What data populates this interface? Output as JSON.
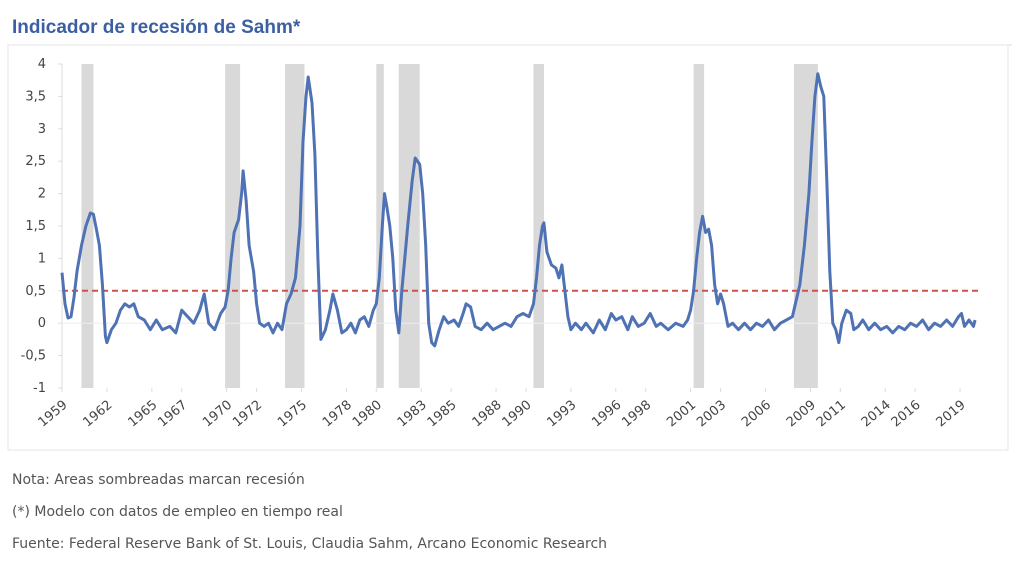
{
  "chart_data": {
    "type": "line",
    "title": "Indicador de recesión de Sahm*",
    "notes": [
      "Nota: Areas sombreadas marcan recesión",
      "(*) Modelo con datos de empleo en tiempo real",
      "Fuente: Federal Reserve Bank of St. Louis, Claudia Sahm, Arcano Economic Research"
    ],
    "xlim": [
      1959,
      2020.2
    ],
    "xticks": [
      1959,
      1962,
      1965,
      1967,
      1970,
      1972,
      1975,
      1978,
      1980,
      1983,
      1985,
      1988,
      1990,
      1993,
      1996,
      1998,
      2001,
      2003,
      2006,
      2009,
      2011,
      2014,
      2016,
      2019
    ],
    "ylim": [
      -1,
      4
    ],
    "yticks": [
      -1,
      {
        "value": -0.5,
        "label": "-0,5"
      },
      0,
      {
        "value": 0.5,
        "label": "0,5"
      },
      1,
      {
        "value": 1.5,
        "label": "1,5"
      },
      2,
      {
        "value": 2.5,
        "label": "2,5"
      },
      3,
      {
        "value": 3.5,
        "label": "3,5"
      },
      4
    ],
    "threshold": 0.5,
    "threshold_color": "#d0504a",
    "recessions": [
      [
        1960.3,
        1961.1
      ],
      [
        1969.9,
        1970.9
      ],
      [
        1973.9,
        1975.2
      ],
      [
        1980.0,
        1980.5
      ],
      [
        1981.5,
        1982.9
      ],
      [
        1990.5,
        1991.2
      ],
      [
        2001.2,
        2001.9
      ],
      [
        2007.9,
        2009.5
      ]
    ],
    "recession_color": "#d9d9d9",
    "series": [
      {
        "color": "#4f72b4",
        "x": [
          1959.0,
          1959.2,
          1959.4,
          1959.6,
          1959.8,
          1960.0,
          1960.3,
          1960.6,
          1960.9,
          1961.1,
          1961.3,
          1961.5,
          1961.7,
          1961.9,
          1962.0,
          1962.3,
          1962.6,
          1962.9,
          1963.2,
          1963.5,
          1963.8,
          1964.1,
          1964.5,
          1964.9,
          1965.3,
          1965.7,
          1966.2,
          1966.6,
          1967.0,
          1967.4,
          1967.8,
          1968.2,
          1968.5,
          1968.8,
          1969.2,
          1969.6,
          1969.9,
          1970.1,
          1970.3,
          1970.5,
          1970.8,
          1971.0,
          1971.1,
          1971.3,
          1971.5,
          1971.8,
          1972.0,
          1972.2,
          1972.5,
          1972.8,
          1973.1,
          1973.4,
          1973.7,
          1974.0,
          1974.3,
          1974.6,
          1974.9,
          1975.1,
          1975.3,
          1975.45,
          1975.7,
          1975.9,
          1976.1,
          1976.3,
          1976.6,
          1976.9,
          1977.1,
          1977.4,
          1977.7,
          1978.0,
          1978.3,
          1978.6,
          1978.9,
          1979.2,
          1979.5,
          1979.8,
          1980.0,
          1980.2,
          1980.4,
          1980.55,
          1980.7,
          1980.9,
          1981.1,
          1981.3,
          1981.5,
          1981.7,
          1981.9,
          1982.1,
          1982.4,
          1982.6,
          1982.9,
          1983.1,
          1983.3,
          1983.5,
          1983.7,
          1983.9,
          1984.2,
          1984.5,
          1984.8,
          1985.2,
          1985.5,
          1985.8,
          1986.0,
          1986.3,
          1986.6,
          1987.0,
          1987.4,
          1987.8,
          1988.2,
          1988.6,
          1989.0,
          1989.4,
          1989.8,
          1990.2,
          1990.5,
          1990.7,
          1990.9,
          1991.1,
          1991.2,
          1991.4,
          1991.7,
          1992.0,
          1992.2,
          1992.4,
          1992.6,
          1992.8,
          1993.0,
          1993.3,
          1993.7,
          1994.0,
          1994.5,
          1994.9,
          1995.3,
          1995.7,
          1996.0,
          1996.4,
          1996.8,
          1997.1,
          1997.5,
          1997.9,
          1998.3,
          1998.7,
          1999.0,
          1999.5,
          2000.0,
          2000.5,
          2000.8,
          2001.0,
          2001.2,
          2001.4,
          2001.6,
          2001.8,
          2002.0,
          2002.2,
          2002.4,
          2002.6,
          2002.8,
          2003.0,
          2003.2,
          2003.5,
          2003.8,
          2004.2,
          2004.6,
          2005.0,
          2005.4,
          2005.8,
          2006.2,
          2006.6,
          2007.0,
          2007.4,
          2007.8,
          2008.0,
          2008.3,
          2008.6,
          2008.9,
          2009.1,
          2009.3,
          2009.5,
          2009.7,
          2009.9,
          2010.1,
          2010.3,
          2010.5,
          2010.7,
          2010.9,
          2011.1,
          2011.4,
          2011.7,
          2011.9,
          2012.2,
          2012.5,
          2012.9,
          2013.3,
          2013.7,
          2014.1,
          2014.5,
          2014.9,
          2015.3,
          2015.7,
          2016.1,
          2016.5,
          2016.9,
          2017.3,
          2017.7,
          2018.1,
          2018.5,
          2018.9,
          2019.1,
          2019.3,
          2019.6,
          2019.9,
          2020.0
        ],
        "values": [
          0.78,
          0.3,
          0.08,
          0.1,
          0.4,
          0.8,
          1.2,
          1.5,
          1.7,
          1.68,
          1.45,
          1.2,
          0.6,
          -0.2,
          -0.3,
          -0.1,
          0.0,
          0.2,
          0.3,
          0.25,
          0.3,
          0.1,
          0.05,
          -0.1,
          0.05,
          -0.1,
          -0.05,
          -0.15,
          0.2,
          0.1,
          0.0,
          0.2,
          0.45,
          0.0,
          -0.1,
          0.15,
          0.25,
          0.5,
          1.0,
          1.4,
          1.6,
          2.0,
          2.35,
          1.9,
          1.2,
          0.8,
          0.3,
          0.0,
          -0.05,
          0.0,
          -0.15,
          0.0,
          -0.1,
          0.3,
          0.45,
          0.7,
          1.5,
          2.8,
          3.5,
          3.8,
          3.4,
          2.6,
          1.0,
          -0.25,
          -0.1,
          0.2,
          0.45,
          0.2,
          -0.15,
          -0.1,
          0.0,
          -0.15,
          0.05,
          0.1,
          -0.05,
          0.2,
          0.3,
          0.7,
          1.5,
          2.0,
          1.8,
          1.5,
          1.0,
          0.2,
          -0.15,
          0.5,
          1.0,
          1.5,
          2.2,
          2.55,
          2.45,
          2.0,
          1.2,
          0.0,
          -0.3,
          -0.35,
          -0.1,
          0.1,
          0.0,
          0.05,
          -0.05,
          0.15,
          0.3,
          0.25,
          -0.05,
          -0.1,
          0.0,
          -0.1,
          -0.05,
          0.0,
          -0.05,
          0.1,
          0.15,
          0.1,
          0.3,
          0.7,
          1.2,
          1.5,
          1.55,
          1.1,
          0.9,
          0.85,
          0.7,
          0.9,
          0.5,
          0.1,
          -0.1,
          0.0,
          -0.1,
          0.0,
          -0.15,
          0.05,
          -0.1,
          0.15,
          0.05,
          0.1,
          -0.1,
          0.1,
          -0.05,
          0.0,
          0.15,
          -0.05,
          0.0,
          -0.1,
          0.0,
          -0.05,
          0.05,
          0.2,
          0.5,
          1.0,
          1.4,
          1.65,
          1.4,
          1.45,
          1.2,
          0.6,
          0.3,
          0.45,
          0.3,
          -0.05,
          0.0,
          -0.1,
          0.0,
          -0.1,
          0.0,
          -0.05,
          0.05,
          -0.1,
          0.0,
          0.05,
          0.1,
          0.3,
          0.6,
          1.2,
          2.0,
          2.8,
          3.5,
          3.85,
          3.65,
          3.5,
          2.2,
          0.8,
          0.0,
          -0.1,
          -0.3,
          0.0,
          0.2,
          0.15,
          -0.1,
          -0.05,
          0.05,
          -0.1,
          0.0,
          -0.1,
          -0.05,
          -0.15,
          -0.05,
          -0.1,
          0.0,
          -0.05,
          0.05,
          -0.1,
          0.0,
          -0.05,
          0.05,
          -0.05,
          0.1,
          0.15,
          -0.05,
          0.05,
          -0.05,
          0.05
        ]
      }
    ]
  }
}
